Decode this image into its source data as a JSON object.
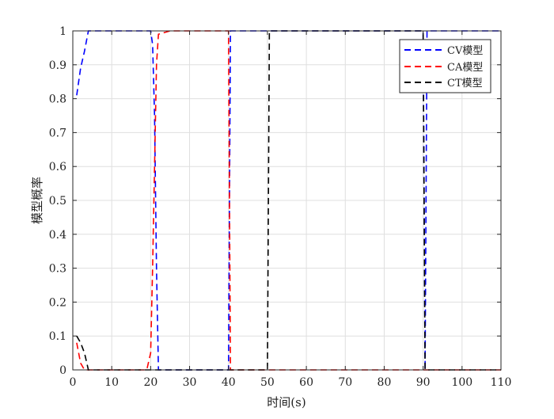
{
  "chart_data": {
    "type": "line",
    "title": "",
    "xlabel": "时间(s)",
    "ylabel": "模型概率",
    "xlim": [
      0,
      110
    ],
    "ylim": [
      0,
      1
    ],
    "xticks": [
      0,
      10,
      20,
      30,
      40,
      50,
      60,
      70,
      80,
      90,
      100,
      110
    ],
    "yticks": [
      0,
      0.1,
      0.2,
      0.3,
      0.4,
      0.5,
      0.6,
      0.7,
      0.8,
      0.9,
      1
    ],
    "xtick_labels": [
      "0",
      "10",
      "20",
      "30",
      "40",
      "50",
      "60",
      "70",
      "80",
      "90",
      "100",
      "110"
    ],
    "ytick_labels": [
      "0",
      "0.1",
      "0.2",
      "0.3",
      "0.4",
      "0.5",
      "0.6",
      "0.7",
      "0.8",
      "0.9",
      "1"
    ],
    "grid": true,
    "legend_position": "top-right",
    "line_style": "dashed",
    "series": [
      {
        "name": "CV模型",
        "color": "#0000ff",
        "points": [
          [
            1,
            0.81
          ],
          [
            2,
            0.89
          ],
          [
            3,
            0.94
          ],
          [
            4,
            1.0
          ],
          [
            20,
            1.0
          ],
          [
            20.5,
            0.96
          ],
          [
            21,
            0.75
          ],
          [
            21.5,
            0.3
          ],
          [
            22,
            0.0
          ],
          [
            40,
            0.0
          ],
          [
            40.5,
            1.0
          ],
          [
            50.5,
            1.0
          ],
          [
            51,
            1.0
          ],
          [
            90,
            1.0
          ],
          [
            90.5,
            0.0
          ],
          [
            91,
            1.0
          ],
          [
            110,
            1.0
          ]
        ]
      },
      {
        "name": "CA模型",
        "color": "#ff0000",
        "points": [
          [
            1,
            0.08
          ],
          [
            2,
            0.02
          ],
          [
            3,
            0.0
          ],
          [
            19,
            0.0
          ],
          [
            20,
            0.05
          ],
          [
            20.5,
            0.3
          ],
          [
            21,
            0.6
          ],
          [
            21.5,
            0.9
          ],
          [
            22,
            0.99
          ],
          [
            25,
            1.0
          ],
          [
            40,
            1.0
          ],
          [
            40.5,
            0.0
          ],
          [
            90,
            0.0
          ],
          [
            110,
            0.0
          ]
        ]
      },
      {
        "name": "CT模型",
        "color": "#000000",
        "points": [
          [
            1,
            0.1
          ],
          [
            2,
            0.08
          ],
          [
            3,
            0.05
          ],
          [
            4,
            0.0
          ],
          [
            50,
            0.0
          ],
          [
            50.5,
            1.0
          ],
          [
            90,
            1.0
          ],
          [
            90.5,
            0.0
          ],
          [
            110,
            0.0
          ]
        ]
      }
    ]
  }
}
